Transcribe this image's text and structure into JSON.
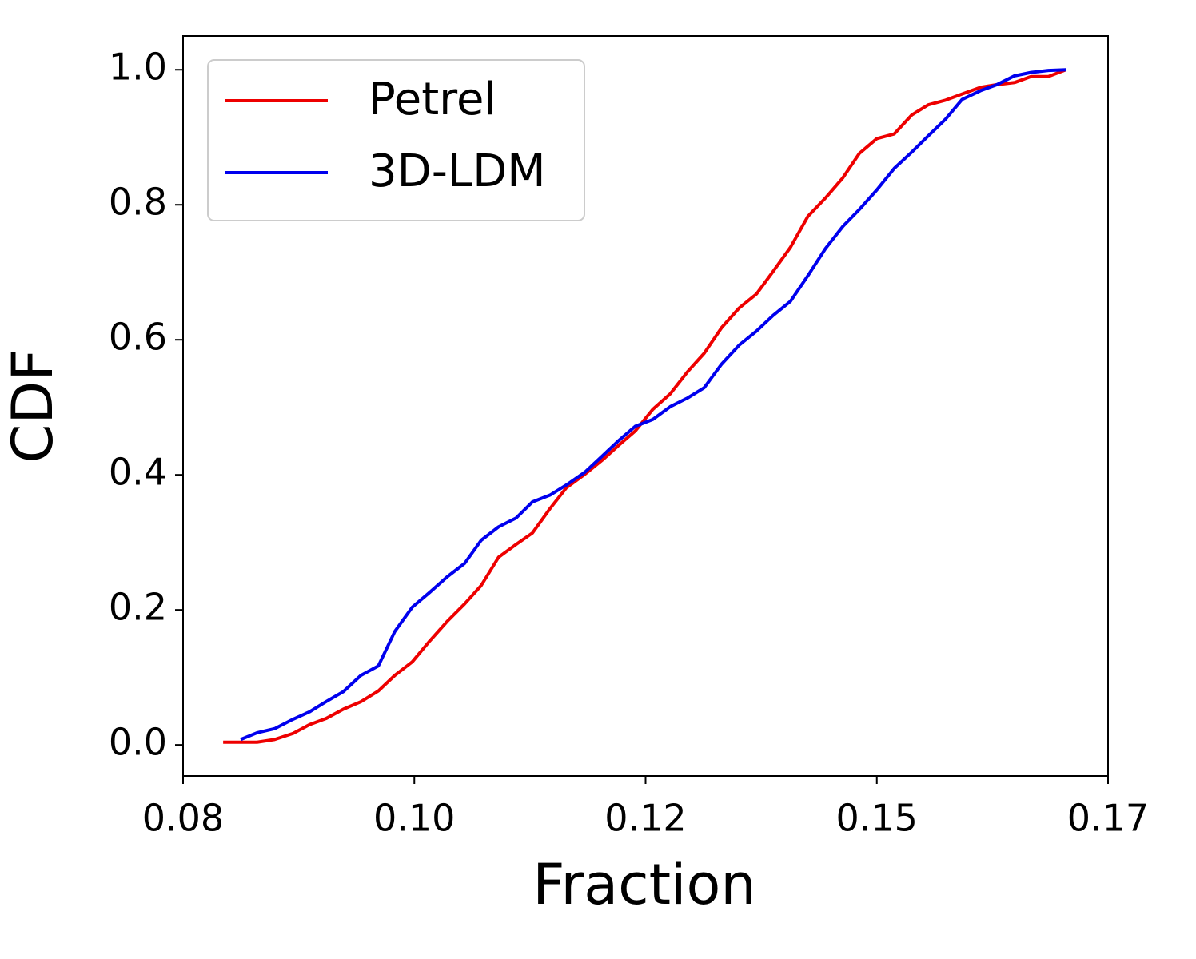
{
  "chart_data": {
    "type": "line",
    "xlabel": "Fraction",
    "ylabel": "CDF",
    "xlim": [
      0.08,
      0.17
    ],
    "xticks": [
      {
        "value": 0.08,
        "label": "0.08"
      },
      {
        "value": 0.1025,
        "label": "0.10"
      },
      {
        "value": 0.125,
        "label": "0.12"
      },
      {
        "value": 0.1475,
        "label": "0.15"
      },
      {
        "value": 0.17,
        "label": "0.17"
      }
    ],
    "ylim": [
      -0.046,
      1.05
    ],
    "yticks": [
      {
        "value": 0,
        "label": "0.0"
      },
      0.2,
      0.4,
      0.6,
      0.8,
      {
        "value": 1,
        "label": "1.0"
      }
    ],
    "legend": "upper left",
    "series": [
      {
        "name": "Petrel",
        "color": "#ee0000",
        "x": [
          0.0839,
          0.0856,
          0.0872,
          0.0889,
          0.0907,
          0.0923,
          0.0939,
          0.0956,
          0.0973,
          0.099,
          0.1006,
          0.1023,
          0.104,
          0.1057,
          0.1074,
          0.109,
          0.1107,
          0.1124,
          0.114,
          0.1157,
          0.1173,
          0.1191,
          0.1208,
          0.1224,
          0.124,
          0.1257,
          0.1274,
          0.1291,
          0.1307,
          0.1324,
          0.1341,
          0.1358,
          0.1374,
          0.1391,
          0.1408,
          0.1425,
          0.1442,
          0.1458,
          0.1475,
          0.1492,
          0.1509,
          0.1525,
          0.1542,
          0.1558,
          0.1576,
          0.1592,
          0.1609,
          0.1625,
          0.1642,
          0.1659
        ],
        "values": [
          0.004,
          0.004,
          0.004,
          0.008,
          0.017,
          0.03,
          0.039,
          0.053,
          0.064,
          0.08,
          0.103,
          0.123,
          0.154,
          0.183,
          0.209,
          0.236,
          0.278,
          0.297,
          0.314,
          0.35,
          0.381,
          0.401,
          0.422,
          0.444,
          0.465,
          0.497,
          0.52,
          0.553,
          0.58,
          0.618,
          0.647,
          0.668,
          0.701,
          0.737,
          0.783,
          0.81,
          0.84,
          0.876,
          0.898,
          0.905,
          0.933,
          0.948,
          0.955,
          0.964,
          0.974,
          0.978,
          0.981,
          0.99,
          0.99,
          1.0
        ]
      },
      {
        "name": "3D-LDM",
        "color": "#0000ee",
        "x": [
          0.0856,
          0.0872,
          0.0889,
          0.0907,
          0.0923,
          0.0939,
          0.0956,
          0.0973,
          0.099,
          0.1006,
          0.1023,
          0.104,
          0.1057,
          0.1074,
          0.109,
          0.1107,
          0.1124,
          0.114,
          0.1157,
          0.1173,
          0.1191,
          0.1208,
          0.1224,
          0.124,
          0.1257,
          0.1274,
          0.1291,
          0.1307,
          0.1324,
          0.1341,
          0.1358,
          0.1374,
          0.1391,
          0.1408,
          0.1425,
          0.1442,
          0.1458,
          0.1475,
          0.1492,
          0.1509,
          0.1525,
          0.1542,
          0.1558,
          0.1576,
          0.1592,
          0.1609,
          0.1625,
          0.1642,
          0.1659
        ],
        "values": [
          0.008,
          0.018,
          0.024,
          0.038,
          0.049,
          0.064,
          0.079,
          0.103,
          0.117,
          0.168,
          0.204,
          0.226,
          0.249,
          0.269,
          0.303,
          0.323,
          0.336,
          0.36,
          0.37,
          0.385,
          0.404,
          0.428,
          0.451,
          0.472,
          0.482,
          0.501,
          0.514,
          0.529,
          0.564,
          0.592,
          0.613,
          0.636,
          0.657,
          0.695,
          0.735,
          0.768,
          0.793,
          0.822,
          0.854,
          0.878,
          0.902,
          0.927,
          0.956,
          0.969,
          0.978,
          0.991,
          0.996,
          0.999,
          1.0
        ]
      }
    ]
  }
}
